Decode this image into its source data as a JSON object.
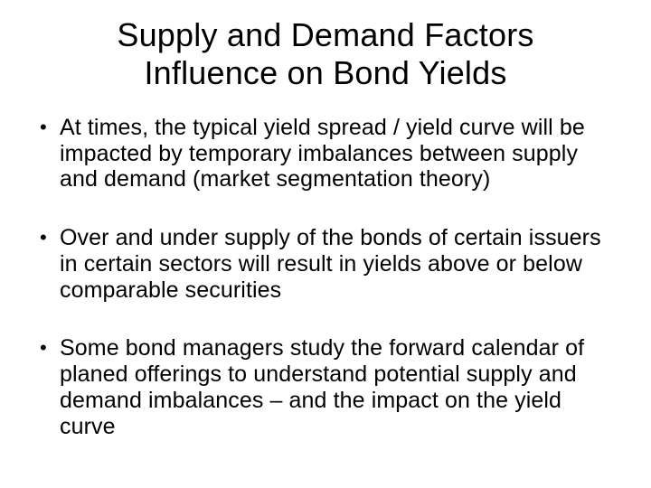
{
  "slide": {
    "title_line1": "Supply and Demand Factors",
    "title_line2": "Influence on Bond Yields",
    "bullets": [
      "At times, the typical yield spread / yield curve will be impacted by temporary imbalances between supply and demand (market segmentation theory)",
      "Over and under supply of the bonds of certain issuers in certain sectors will result in yields above or below comparable securities",
      "Some bond managers study the forward calendar of planed offerings to understand potential supply and demand imbalances – and the impact on the yield curve"
    ],
    "style": {
      "background_color": "#ffffff",
      "text_color": "#000000",
      "title_fontsize_pt": 27,
      "body_fontsize_pt": 19,
      "font_family": "Arial"
    }
  }
}
